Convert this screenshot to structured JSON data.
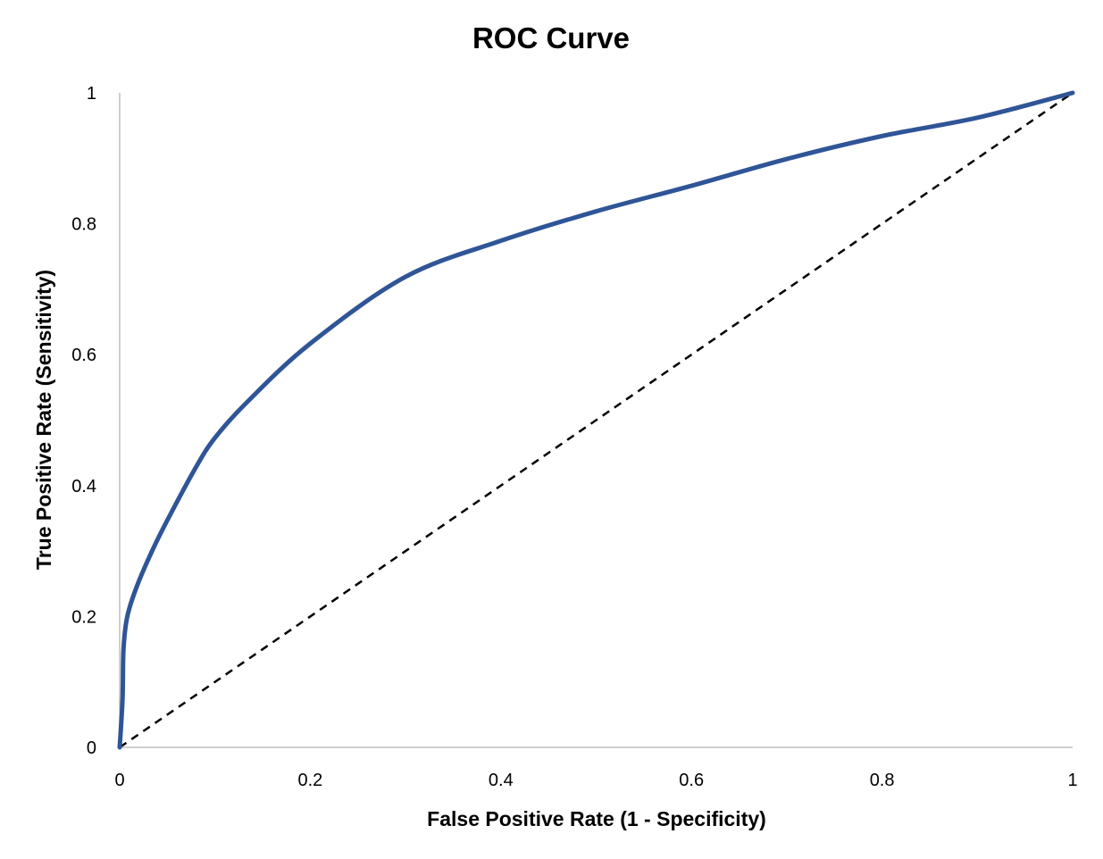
{
  "chart_data": {
    "type": "line",
    "title": "ROC Curve",
    "xlabel": "False Positive Rate (1 - Specificity)",
    "ylabel": "True Positive Rate (Sensitivity)",
    "xlim": [
      0,
      1
    ],
    "ylim": [
      0,
      1
    ],
    "xticks": [
      "0",
      "0.2",
      "0.4",
      "0.6",
      "0.8",
      "1"
    ],
    "yticks": [
      "0",
      "0.2",
      "0.4",
      "0.6",
      "0.8",
      "1"
    ],
    "grid": false,
    "legend": "none",
    "series": [
      {
        "style": "solid",
        "color": "#2F5597",
        "x": [
          0,
          0.003,
          0.004,
          0.008,
          0.018,
          0.034,
          0.05,
          0.08,
          0.1,
          0.134,
          0.2,
          0.3,
          0.4,
          0.5,
          0.6,
          0.7,
          0.8,
          0.9,
          1
        ],
        "y": [
          0,
          0.074,
          0.15,
          0.2,
          0.246,
          0.3,
          0.347,
          0.428,
          0.473,
          0.528,
          0.617,
          0.719,
          0.774,
          0.819,
          0.858,
          0.899,
          0.934,
          0.962,
          1
        ]
      },
      {
        "style": "dashed",
        "color": "#000000",
        "x": [
          0,
          1
        ],
        "y": [
          0,
          1
        ]
      }
    ]
  }
}
